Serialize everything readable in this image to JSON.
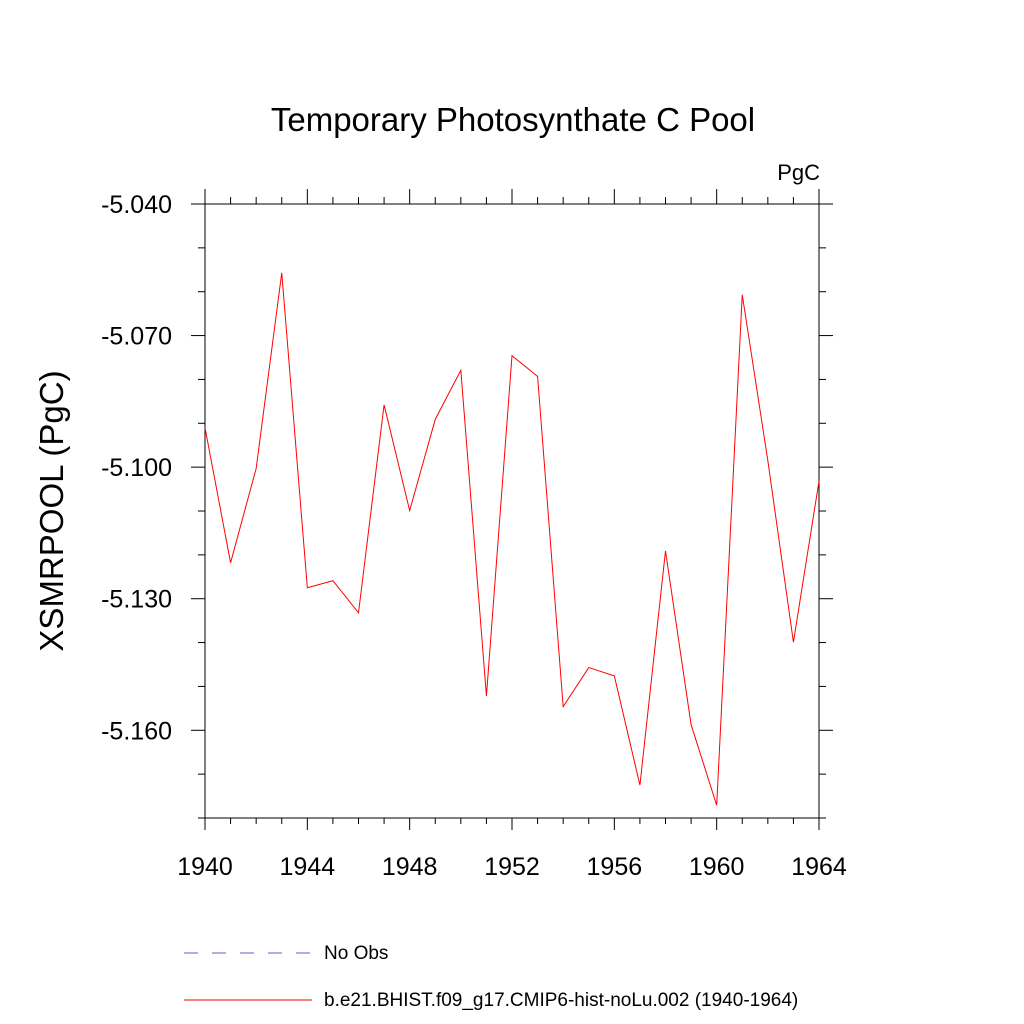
{
  "chart_data": {
    "type": "line",
    "title": "Temporary Photosynthate C Pool",
    "units_label": "PgC",
    "ylabel": "XSMRPOOL  (PgC)",
    "xlabel": "",
    "xlim": [
      1940,
      1964
    ],
    "ylim": [
      -5.18,
      -5.04
    ],
    "x_ticks": [
      1940,
      1944,
      1948,
      1952,
      1956,
      1960,
      1964
    ],
    "x_tick_labels": [
      "1940",
      "1944",
      "1948",
      "1952",
      "1956",
      "1960",
      "1964"
    ],
    "y_ticks": [
      -5.04,
      -5.07,
      -5.1,
      -5.13,
      -5.16
    ],
    "y_tick_labels": [
      "-5.040",
      "-5.070",
      "-5.100",
      "-5.130",
      "-5.160"
    ],
    "grid": false,
    "legend_placement": "bottom",
    "series": [
      {
        "name": "b.e21.BHIST.f09_g17.CMIP6-hist-noLu.002 (1940-1964)",
        "color": "#ff0000",
        "style": "solid",
        "x": [
          1940,
          1941,
          1942,
          1943,
          1944,
          1945,
          1946,
          1947,
          1948,
          1949,
          1950,
          1951,
          1952,
          1953,
          1954,
          1955,
          1956,
          1957,
          1958,
          1959,
          1960,
          1961,
          1962,
          1963,
          1964
        ],
        "y": [
          -5.091,
          -5.1218,
          -5.1003,
          -5.0557,
          -5.1275,
          -5.1259,
          -5.1332,
          -5.0858,
          -5.1099,
          -5.0891,
          -5.0779,
          -5.1522,
          -5.0746,
          -5.0793,
          -5.1546,
          -5.1457,
          -5.1476,
          -5.1725,
          -5.1191,
          -5.1587,
          -5.1771,
          -5.0607,
          -5.0985,
          -5.1399,
          -5.1032
        ]
      },
      {
        "name": "No Obs",
        "color": "#6a5acd",
        "style": "dashed",
        "x": [],
        "y": []
      }
    ]
  }
}
